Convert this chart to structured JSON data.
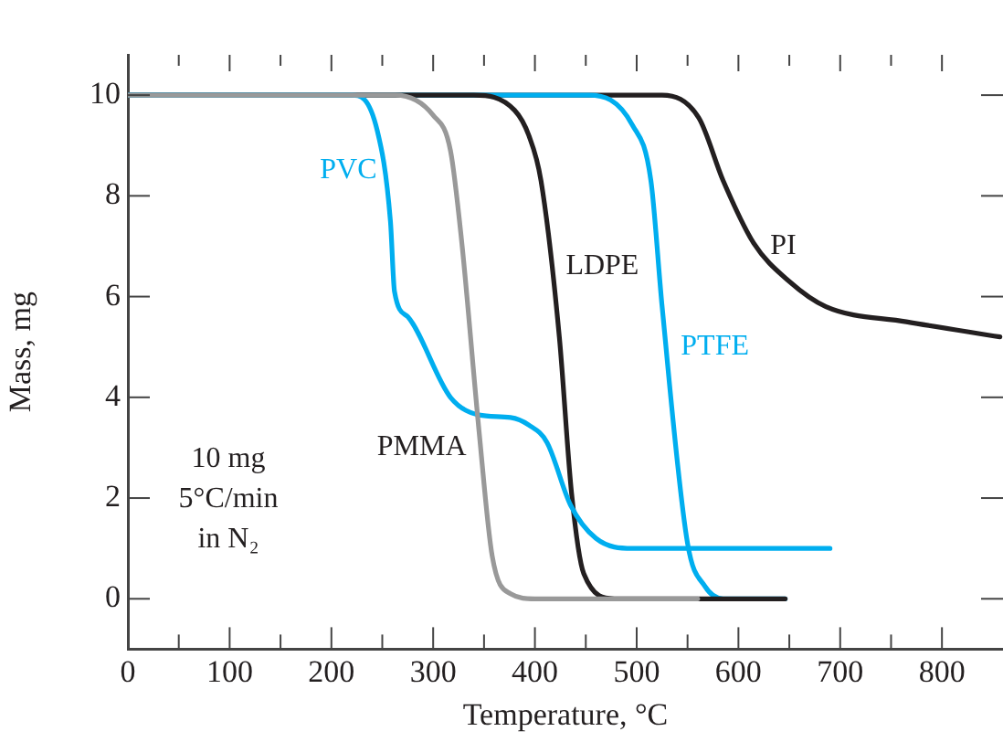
{
  "chart_data": {
    "type": "line",
    "xlabel": "Temperature, °C",
    "ylabel": "Mass, mg",
    "xlim": [
      0,
      860
    ],
    "ylim": [
      -1,
      10.8
    ],
    "xticks": [
      0,
      {
        "value": 50,
        "label": null
      },
      100,
      {
        "value": 150,
        "label": null
      },
      200,
      {
        "value": 250,
        "label": null
      },
      300,
      {
        "value": 350,
        "label": null
      },
      400,
      {
        "value": 450,
        "label": null
      },
      500,
      {
        "value": 550,
        "label": null
      },
      600,
      {
        "value": 650,
        "label": null
      },
      700,
      {
        "value": 750,
        "label": null
      },
      800
    ],
    "yticks": [
      0,
      2,
      4,
      6,
      8,
      10
    ],
    "grid": false,
    "legend": false,
    "marker": "none",
    "line_style": "solid",
    "series": [
      {
        "color": "#999999",
        "x": [
          0,
          263,
          300,
          317,
          328,
          345,
          358,
          376,
          400,
          560
        ],
        "values": [
          10,
          10,
          9.6,
          8.9,
          7.1,
          3.35,
          0.85,
          0.1,
          0,
          0
        ]
      },
      {
        "color": "#00aeef",
        "x": [
          0,
          220,
          245,
          258,
          262,
          275,
          317,
          345,
          376,
          394,
          412,
          435,
          460,
          496,
          690
        ],
        "values": [
          10,
          10,
          9.3,
          7.5,
          6.1,
          5.6,
          4.0,
          3.65,
          3.6,
          3.45,
          3.1,
          1.86,
          1.2,
          1.0,
          1.0
        ]
      },
      {
        "color": "#231f20",
        "x": [
          0,
          340,
          380,
          394,
          406,
          424,
          436,
          448,
          478,
          646
        ],
        "values": [
          10,
          10,
          9.7,
          9.2,
          8.3,
          5.2,
          2.1,
          0.5,
          0,
          0
        ]
      },
      {
        "color": "#00aeef",
        "x": [
          0,
          453,
          496,
          514,
          525,
          550,
          567,
          585,
          646
        ],
        "values": [
          10,
          10,
          9.4,
          8.3,
          5.8,
          1.1,
          0.25,
          0,
          0
        ]
      },
      {
        "color": "#231f20",
        "x": [
          0,
          525,
          561,
          585,
          615,
          650,
          686,
          765,
          857
        ],
        "values": [
          10,
          10,
          9.55,
          8.3,
          7.06,
          6.3,
          5.8,
          5.5,
          5.2
        ]
      }
    ],
    "annotations": [
      {
        "text": "PVC",
        "x": 259,
        "y": 8.5
      },
      {
        "text": "PMMA",
        "x": 347,
        "y": 3.0
      },
      {
        "text": "LDPE",
        "x": 416,
        "y": 6.6
      },
      {
        "text": "PTFE",
        "x": 529,
        "y": 5.0
      },
      {
        "text": "PI",
        "x": 617,
        "y": 7.0
      },
      "10 mg\n5°C/min\nin N₂"
    ]
  }
}
